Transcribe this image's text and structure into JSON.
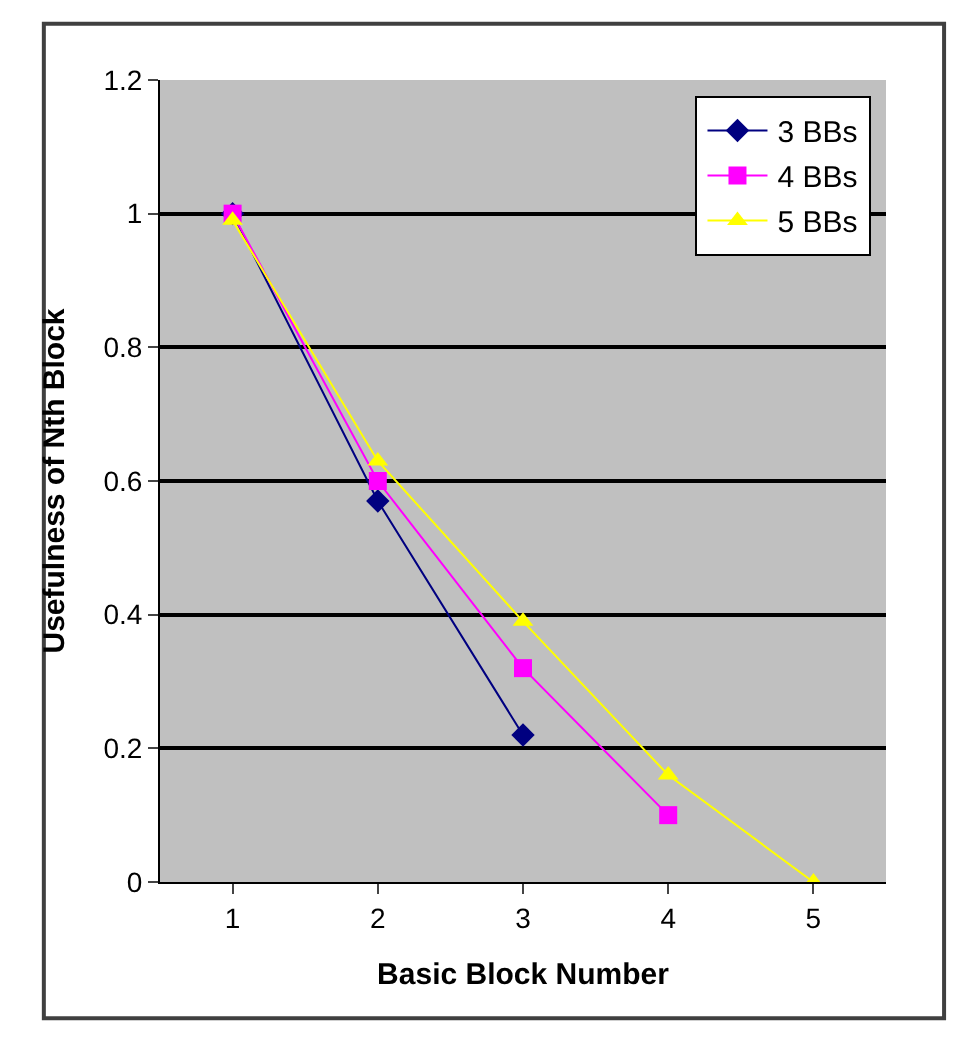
{
  "chart_data": {
    "type": "line",
    "xlabel": "Basic Block Number",
    "ylabel": "Usefulness of Nth Block",
    "categories": [
      "1",
      "2",
      "3",
      "4",
      "5"
    ],
    "series": [
      {
        "name": "3 BBs",
        "color": "#000080",
        "marker": "diamond",
        "values": [
          1.0,
          0.57,
          0.22,
          null,
          null
        ]
      },
      {
        "name": "4 BBs",
        "color": "#ff00ff",
        "marker": "square",
        "values": [
          1.0,
          0.6,
          0.32,
          0.1,
          null
        ]
      },
      {
        "name": "5 BBs",
        "color": "#ffff00",
        "marker": "triangle",
        "values": [
          0.99,
          0.63,
          0.39,
          0.16,
          0.0
        ]
      }
    ],
    "ylim": [
      0,
      1.2
    ],
    "yticks": [
      0,
      0.2,
      0.4,
      0.6,
      0.8,
      1,
      1.2
    ],
    "grid": "y",
    "legend": "top right"
  }
}
